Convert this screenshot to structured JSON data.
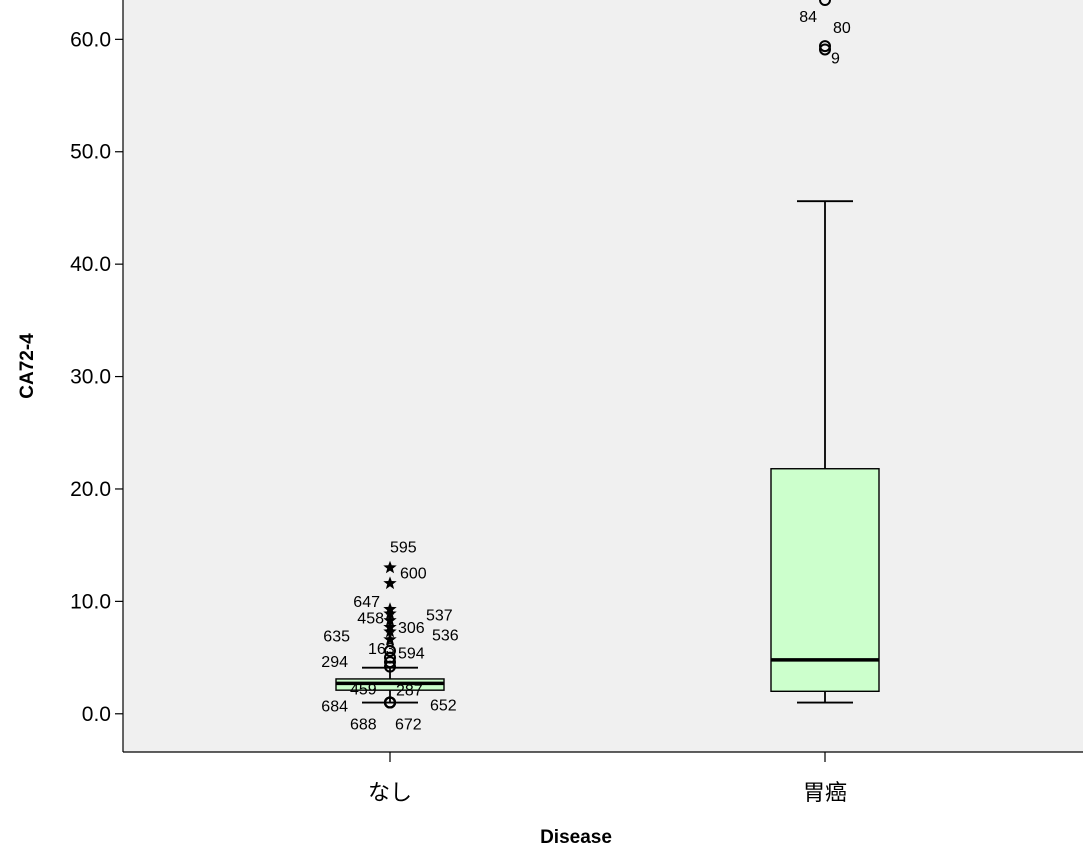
{
  "chart_data": {
    "type": "boxplot",
    "xlabel": "Disease",
    "ylabel": "CA72-4",
    "ylim": [
      -3.4,
      63.5
    ],
    "yticks": [
      "0.0",
      "10.0",
      "20.0",
      "30.0",
      "40.0",
      "50.0",
      "60.0"
    ],
    "grid": false,
    "colors": {
      "box_fill": "#ccffcc",
      "plot_bg": "#f0f0f0"
    },
    "categories": [
      "なし",
      "胃癌"
    ],
    "boxes": [
      {
        "category": "なし",
        "whisker_low": 1.0,
        "q1": 2.1,
        "median": 2.7,
        "q3": 3.1,
        "whisker_high": 4.1,
        "outliers": [
          {
            "marker": "star",
            "y": 13.0,
            "label": "595"
          },
          {
            "marker": "star",
            "y": 11.6,
            "label": "600"
          },
          {
            "marker": "star",
            "y": 9.3,
            "label": "647"
          },
          {
            "marker": "star",
            "y": 8.9,
            "label": "537"
          },
          {
            "marker": "star",
            "y": 8.3,
            "label": "458"
          },
          {
            "marker": "star",
            "y": 7.7,
            "label": "306"
          },
          {
            "marker": "star",
            "y": 7.3,
            "label": "536"
          },
          {
            "marker": "star",
            "y": 6.6,
            "label": "635"
          },
          {
            "marker": "circle",
            "y": 5.6,
            "label": "163"
          },
          {
            "marker": "circle",
            "y": 5.0,
            "label": "594"
          },
          {
            "marker": "circle",
            "y": 4.6,
            "label": "294"
          },
          {
            "marker": "circle",
            "y": 4.2,
            "label": ""
          },
          {
            "marker": "circle",
            "y": 1.0,
            "label": "459"
          },
          {
            "marker": "circle",
            "y": 1.0,
            "label": "287"
          },
          {
            "marker": "circle",
            "y": 1.0,
            "label": "684"
          },
          {
            "marker": "circle",
            "y": 1.0,
            "label": "652"
          },
          {
            "marker": "circle",
            "y": 1.0,
            "label": "688"
          },
          {
            "marker": "circle",
            "y": 1.0,
            "label": "672"
          }
        ]
      },
      {
        "category": "胃癌",
        "whisker_low": 1.0,
        "q1": 2.0,
        "median": 4.8,
        "q3": 21.8,
        "whisker_high": 45.6,
        "outliers": [
          {
            "marker": "circle",
            "y": 63.5,
            "label": "84"
          },
          {
            "marker": "circle",
            "y": 59.4,
            "label": "80"
          },
          {
            "marker": "circle",
            "y": 59.1,
            "label": "9"
          }
        ]
      }
    ]
  }
}
